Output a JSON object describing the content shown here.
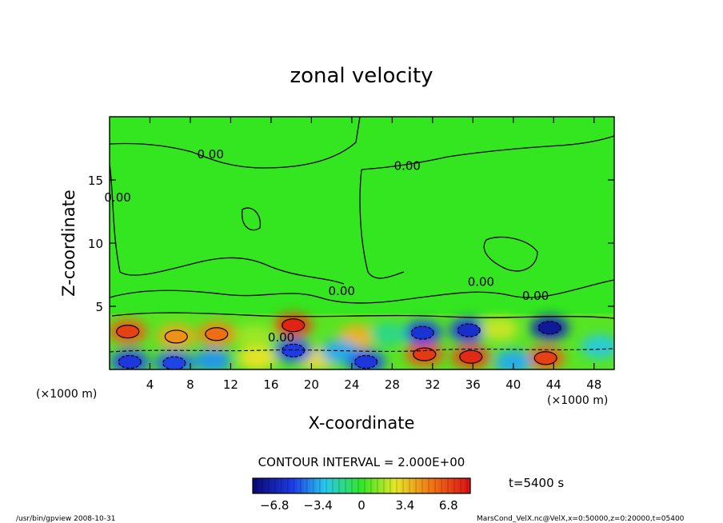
{
  "chart_data": {
    "type": "heatmap",
    "title": "zonal velocity",
    "xlabel": "X-coordinate",
    "ylabel": "Z-coordinate",
    "x_unit_left": "(×1000 m)",
    "x_unit_right": "(×1000 m)",
    "xlim": [
      0,
      50
    ],
    "ylim": [
      0,
      20
    ],
    "x_ticks": [
      4,
      8,
      12,
      16,
      20,
      24,
      28,
      32,
      36,
      40,
      44,
      48
    ],
    "y_ticks": [
      5,
      10,
      15
    ],
    "contour_interval_text": "CONTOUR INTERVAL = 2.000E+00",
    "contour_labels": [
      {
        "text": "0.00",
        "x": 10,
        "y": 16.7
      },
      {
        "text": "0.00",
        "x": 29.5,
        "y": 15.8
      },
      {
        "text": "0.00",
        "x": 0.8,
        "y": 13.3
      },
      {
        "text": "0.00",
        "x": 23,
        "y": 5.9
      },
      {
        "text": "0.00",
        "x": 36.8,
        "y": 6.6
      },
      {
        "text": "0.00",
        "x": 42.2,
        "y": 5.5
      },
      {
        "text": "0.00",
        "x": 17,
        "y": 2.2
      }
    ],
    "cells": [
      {
        "x": 1.8,
        "y": 3.0,
        "v": 6.2
      },
      {
        "x": 6.6,
        "y": 2.6,
        "v": 4.2
      },
      {
        "x": 10.6,
        "y": 2.8,
        "v": 5.0
      },
      {
        "x": 18.2,
        "y": 3.5,
        "v": 7.0
      },
      {
        "x": 24.6,
        "y": 2.6,
        "v": 4.0
      },
      {
        "x": 31.2,
        "y": 1.2,
        "v": 6.4
      },
      {
        "x": 35.8,
        "y": 1.0,
        "v": 6.8
      },
      {
        "x": 43.2,
        "y": 0.9,
        "v": 6.2
      },
      {
        "x": 20.6,
        "y": 0.9,
        "v": 3.0
      },
      {
        "x": 14.6,
        "y": 0.9,
        "v": 2.8
      },
      {
        "x": 2.0,
        "y": 0.6,
        "v": -5.0
      },
      {
        "x": 6.4,
        "y": 0.5,
        "v": -4.6
      },
      {
        "x": 10.2,
        "y": 0.7,
        "v": -3.8
      },
      {
        "x": 18.2,
        "y": 1.5,
        "v": -4.8
      },
      {
        "x": 22.8,
        "y": 1.4,
        "v": -3.4
      },
      {
        "x": 25.4,
        "y": 0.6,
        "v": -5.0
      },
      {
        "x": 31.0,
        "y": 2.9,
        "v": -5.2
      },
      {
        "x": 35.6,
        "y": 3.1,
        "v": -5.4
      },
      {
        "x": 40.0,
        "y": 0.6,
        "v": -3.4
      },
      {
        "x": 43.6,
        "y": 3.3,
        "v": -6.6
      },
      {
        "x": 48.6,
        "y": 1.8,
        "v": -2.6
      },
      {
        "x": 38.6,
        "y": 3.2,
        "v": 2.2
      },
      {
        "x": 27.6,
        "y": 2.8,
        "v": -1.4
      },
      {
        "x": 14.4,
        "y": 2.6,
        "v": 1.6
      }
    ],
    "colorbar": {
      "min": -8.5,
      "max": 8.5,
      "tick_labels": [
        "−6.8",
        "−3.4",
        "0",
        "3.4",
        "6.8"
      ],
      "tick_values": [
        -6.8,
        -3.4,
        0,
        3.4,
        6.8
      ]
    },
    "grid": false,
    "legend": "colorbar-bottom-center"
  },
  "time_label": "t=5400 s",
  "footer_left": "/usr/bin/gpview  2008-10-31",
  "footer_right": "MarsCond_VelX.nc@VelX,x=0:50000,z=0:20000,t=05400"
}
